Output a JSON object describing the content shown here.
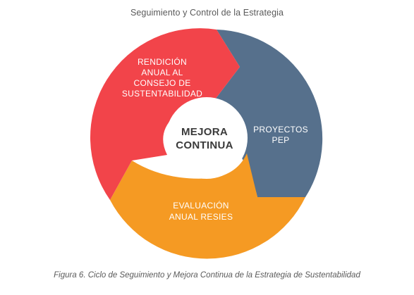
{
  "title": "Seguimiento y Control de la Estrategia",
  "center": {
    "line1": "MEJORA",
    "line2": "CONTINUA"
  },
  "segments": [
    {
      "id": "rendicion",
      "color": "#f2444a",
      "lines": [
        "RENDICIÓN",
        "ANUAL AL",
        "CONSEJO DE",
        "SUSTENTABILIDAD"
      ]
    },
    {
      "id": "proyectos",
      "color": "#56708c",
      "lines": [
        "PROYECTOS",
        "PEP"
      ]
    },
    {
      "id": "evaluacion",
      "color": "#f59a23",
      "lines": [
        "EVALUACIÓN",
        "ANUAL RESIES"
      ]
    }
  ],
  "caption": "Figura 6. Ciclo de Seguimiento y Mejora Continua de la Estrategia de Sustentabilidad"
}
